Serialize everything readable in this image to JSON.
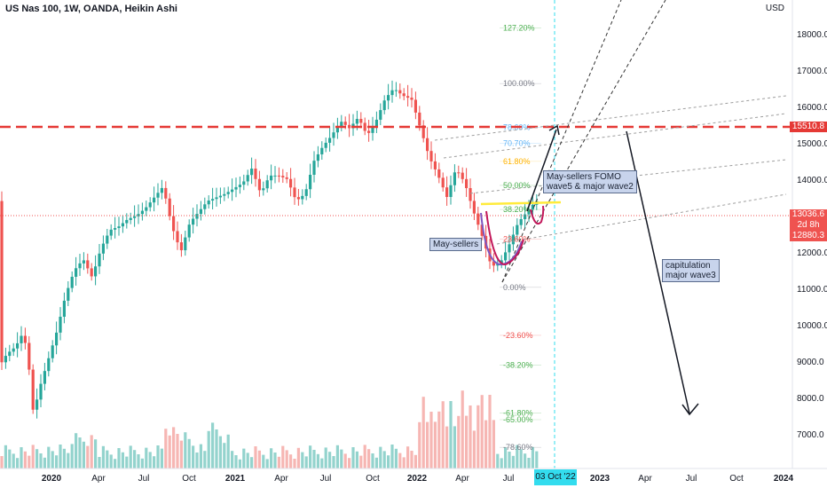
{
  "header": {
    "title": "US Nas 100, 1W, OANDA, Heikin Ashi",
    "currency": "USD"
  },
  "colors": {
    "up": "#26a69a",
    "down": "#ef5350",
    "marker": "#e53935",
    "fib_line": "#ffeb3b",
    "crosshair": "#33dcee",
    "arc": "#c2185b"
  },
  "annotations": {
    "fomo": "May-sellers FOMO\nwave5 & major wave2",
    "sellers": "May-sellers",
    "capitulation": "capitulation\nmajor wave3"
  },
  "price_tags": {
    "level": "15510.8",
    "last": "13036.6",
    "countdown": "2d 8h",
    "low": "12880.3"
  },
  "crosshair_date": "03 Oct '22",
  "chart_data": {
    "type": "candlestick",
    "title": "US Nas 100, 1W, OANDA, Heikin Ashi",
    "price_axis": {
      "ticks": [
        18000,
        17000,
        16000,
        15000,
        14000,
        13000,
        12000,
        11000,
        10000,
        9000,
        8000,
        7000
      ]
    },
    "time_axis": {
      "ticks": [
        "2020",
        "Apr",
        "Jul",
        "Oct",
        "2021",
        "Apr",
        "Jul",
        "Oct",
        "2022",
        "Apr",
        "Jul",
        "2023",
        "Apr",
        "Jul",
        "Oct",
        "2024"
      ]
    },
    "fib_levels": [
      "127.20%",
      "100.00%",
      "78.60%",
      "70.70%",
      "61.80%",
      "50.00%",
      "38.20%",
      "23.60%",
      "0.00%",
      "-23.60%",
      "-38.20%",
      "-61.80%",
      "-65.00%",
      "-78.60%"
    ],
    "fib_colors": [
      "#4caf50",
      "#787b86",
      "#64b5f6",
      "#64b5f6",
      "#ffb300",
      "#4caf50",
      "#4caf50",
      "#ef5350",
      "#787b86",
      "#ef5350",
      "#4caf50",
      "#4caf50",
      "#4caf50",
      "#787b86"
    ],
    "fib_pct": [
      1.272,
      1.0,
      0.786,
      0.707,
      0.618,
      0.5,
      0.382,
      0.236,
      0.0,
      -0.236,
      -0.382,
      -0.618,
      -0.65,
      -0.786
    ],
    "horizontal_level": 15510.8,
    "yellow_line": 13500,
    "legend": "none",
    "grid": false
  }
}
